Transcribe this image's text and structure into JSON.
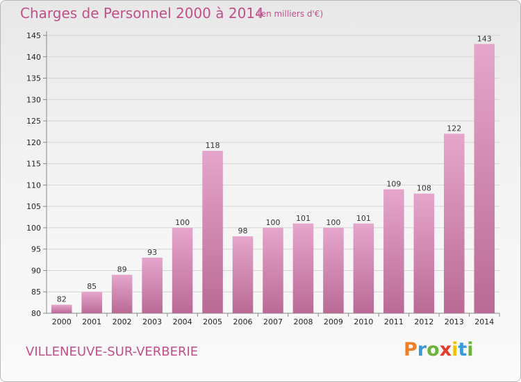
{
  "header": {
    "title": "Charges de Personnel 2000 à 2014",
    "subtitle": "(en milliers d'€)"
  },
  "footer": {
    "town": "VILLENEUVE-SUR-VERBERIE",
    "logo": {
      "letters": [
        "P",
        "r",
        "o",
        "x",
        "i",
        "t",
        "i"
      ],
      "colors": [
        "#f07f2a",
        "#3a9ad9",
        "#6bb33a",
        "#e23b2a",
        "#f2c100",
        "#3a9ad9",
        "#6bb33a"
      ]
    }
  },
  "colors": {
    "accent": "#c0508a",
    "bar_top": "#e6a6cc",
    "bar_bottom": "#b96a95",
    "grid": "#d4d4d4",
    "axis": "#888888"
  },
  "chart_data": {
    "type": "bar",
    "title": "Charges de Personnel 2000 à 2014",
    "subtitle": "(en milliers d'€)",
    "categories": [
      "2000",
      "2001",
      "2002",
      "2003",
      "2004",
      "2005",
      "2006",
      "2007",
      "2008",
      "2009",
      "2010",
      "2011",
      "2012",
      "2013",
      "2014"
    ],
    "values": [
      82,
      85,
      89,
      93,
      100,
      118,
      98,
      100,
      101,
      100,
      101,
      109,
      108,
      122,
      143
    ],
    "ylim": [
      80,
      145
    ],
    "yticks": [
      80,
      85,
      90,
      95,
      100,
      105,
      110,
      115,
      120,
      125,
      130,
      135,
      140,
      145
    ],
    "grid": true,
    "xlabel": "",
    "ylabel": ""
  }
}
